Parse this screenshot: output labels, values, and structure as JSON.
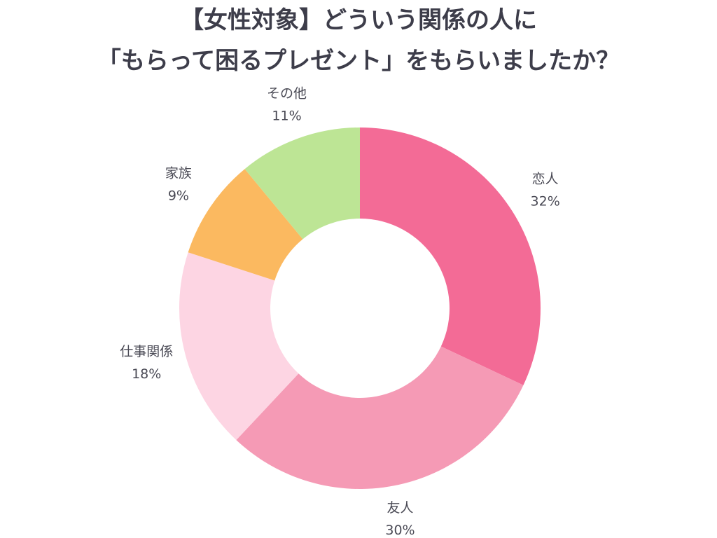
{
  "chart_data": {
    "type": "donut",
    "title": [
      "【女性対象】どういう関係の人に",
      "「もらって困るプレゼント」をもらいましたか？"
    ],
    "categories": [
      "恋人",
      "友人",
      "仕事関係",
      "家族",
      "その他"
    ],
    "values": [
      32,
      30,
      18,
      9,
      11
    ],
    "value_labels": [
      "32%",
      "30%",
      "18%",
      "9%",
      "11%"
    ],
    "colors": [
      "#f36b96",
      "#f59ab5",
      "#fdd5e3",
      "#fbb960",
      "#bde595"
    ]
  }
}
